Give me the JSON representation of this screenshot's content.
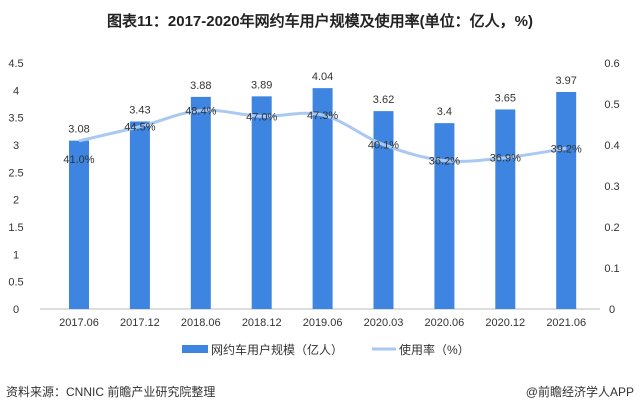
{
  "chart_data": {
    "type": "bar",
    "title": "图表11：2017-2020年网约车用户规模及使用率(单位：亿人，%)",
    "categories": [
      "2017.06",
      "2017.12",
      "2018.06",
      "2018.12",
      "2019.06",
      "2020.03",
      "2020.06",
      "2020.12",
      "2021.06"
    ],
    "series": [
      {
        "name": "网约车用户规模（亿人）",
        "type": "bar",
        "axis": "left",
        "color": "#3d85e0",
        "values": [
          3.08,
          3.43,
          3.88,
          3.89,
          4.04,
          3.62,
          3.4,
          3.65,
          3.97
        ],
        "labels": [
          "3.08",
          "3.43",
          "3.88",
          "3.89",
          "4.04",
          "3.62",
          "3.4",
          "3.65",
          "3.97"
        ]
      },
      {
        "name": "使用率（%）",
        "type": "line",
        "axis": "right",
        "color": "#a9c9f2",
        "values": [
          0.41,
          0.445,
          0.484,
          0.47,
          0.473,
          0.401,
          0.362,
          0.369,
          0.392
        ],
        "labels": [
          "41.0%",
          "44.5%",
          "48.4%",
          "47.0%",
          "47.3%",
          "40.1%",
          "36.2%",
          "36.9%",
          "39.2%"
        ]
      }
    ],
    "yleft": {
      "ylim": [
        0,
        4.5
      ],
      "ticks": [
        "0",
        "0.5",
        "1",
        "1.5",
        "2",
        "2.5",
        "3",
        "3.5",
        "4",
        "4.5"
      ]
    },
    "yright": {
      "ylim": [
        0,
        0.6
      ],
      "ticks": [
        "0",
        "0.1",
        "0.2",
        "0.3",
        "0.4",
        "0.5",
        "0.6"
      ]
    },
    "legend": "bottom-center",
    "grid": false
  },
  "footer": {
    "source": "资料来源：CNNIC 前瞻产业研究院整理",
    "credit": "@前瞻经济学人APP"
  }
}
